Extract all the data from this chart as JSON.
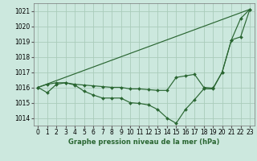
{
  "title": "Graphe pression niveau de la mer (hPa)",
  "bg_color": "#cce8de",
  "grid_color": "#aaccbb",
  "line_color": "#2a6632",
  "xlim": [
    -0.5,
    23.5
  ],
  "ylim": [
    1013.5,
    1021.5
  ],
  "yticks": [
    1014,
    1015,
    1016,
    1017,
    1018,
    1019,
    1020,
    1021
  ],
  "xticks": [
    0,
    1,
    2,
    3,
    4,
    5,
    6,
    7,
    8,
    9,
    10,
    11,
    12,
    13,
    14,
    15,
    16,
    17,
    18,
    19,
    20,
    21,
    22,
    23
  ],
  "series": [
    {
      "x": [
        0,
        23
      ],
      "y": [
        1016.0,
        1021.1
      ],
      "marker": false
    },
    {
      "x": [
        0,
        1,
        2,
        3,
        4,
        5,
        6,
        7,
        8,
        9,
        10,
        11,
        12,
        13,
        14,
        15,
        16,
        17,
        18,
        19,
        20,
        21,
        22,
        23
      ],
      "y": [
        1016.0,
        1016.2,
        1016.3,
        1016.3,
        1016.2,
        1016.15,
        1016.1,
        1016.05,
        1016.0,
        1016.0,
        1015.9,
        1015.9,
        1015.85,
        1015.8,
        1015.8,
        1016.65,
        1016.75,
        1016.85,
        1016.0,
        1015.95,
        1017.0,
        1019.1,
        1019.3,
        1021.1
      ],
      "marker": true
    },
    {
      "x": [
        0,
        1,
        2,
        3,
        4,
        5,
        6,
        7,
        8,
        9,
        10,
        11,
        12,
        13,
        14,
        15,
        16,
        17,
        18,
        19,
        20,
        21,
        22,
        23
      ],
      "y": [
        1016.0,
        1015.65,
        1016.2,
        1016.3,
        1016.15,
        1015.75,
        1015.5,
        1015.3,
        1015.3,
        1015.3,
        1015.0,
        1014.95,
        1014.85,
        1014.55,
        1014.0,
        1013.65,
        1014.55,
        1015.2,
        1015.9,
        1015.9,
        1017.0,
        1019.1,
        1020.5,
        1021.1
      ],
      "marker": true
    }
  ]
}
